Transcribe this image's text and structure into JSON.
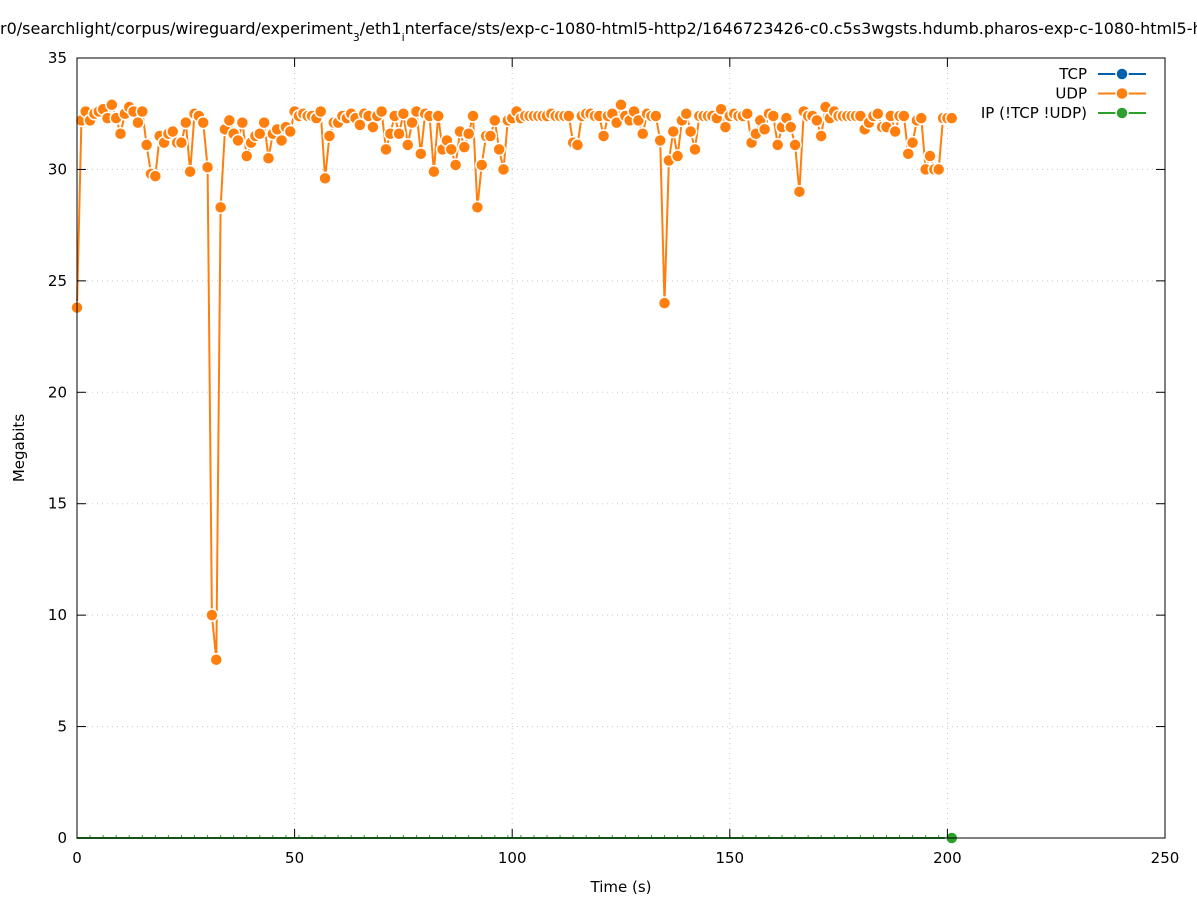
{
  "chart_data": {
    "type": "line",
    "title": "r0/searchlight/corpus/wireguard/experiment_3/eth1_interface/sts/exp-c-1080-html5-http2/1646723426-c0.c5s3wgsts.hdumb.pharos-exp-c-1080-html5-h",
    "title_parts": {
      "a": "r0/searchlight/corpus/wireguard/experiment",
      "sub1": "3",
      "b": "/eth1",
      "sub2": "i",
      "c": "nterface/sts/exp-c-1080-html5-http2/1646723426-c0.c5s3wgsts.hdumb.pharos-exp-c-1080-html5-h"
    },
    "xlabel": "Time (s)",
    "ylabel": "Megabits",
    "xlim": [
      0,
      250
    ],
    "ylim": [
      0,
      35
    ],
    "xticks": [
      0,
      50,
      100,
      150,
      200,
      250
    ],
    "yticks": [
      0,
      5,
      10,
      15,
      20,
      25,
      30,
      35
    ],
    "grid": true,
    "legend_position": "top-right",
    "series": [
      {
        "name": "TCP",
        "color": "#0060ad",
        "x": [],
        "y": []
      },
      {
        "name": "UDP",
        "color": "#ff7f0e",
        "x": [
          0,
          1,
          2,
          3,
          4,
          5,
          6,
          7,
          8,
          9,
          10,
          11,
          12,
          13,
          14,
          15,
          16,
          17,
          18,
          19,
          20,
          21,
          22,
          23,
          24,
          25,
          26,
          27,
          28,
          29,
          30,
          31,
          32,
          33,
          34,
          35,
          36,
          37,
          38,
          39,
          40,
          41,
          42,
          43,
          44,
          45,
          46,
          47,
          48,
          49,
          50,
          51,
          52,
          53,
          54,
          55,
          56,
          57,
          58,
          59,
          60,
          61,
          62,
          63,
          64,
          65,
          66,
          67,
          68,
          69,
          70,
          71,
          72,
          73,
          74,
          75,
          76,
          77,
          78,
          79,
          80,
          81,
          82,
          83,
          84,
          85,
          86,
          87,
          88,
          89,
          90,
          91,
          92,
          93,
          94,
          95,
          96,
          97,
          98,
          99,
          100,
          101,
          102,
          103,
          104,
          105,
          106,
          107,
          108,
          109,
          110,
          111,
          112,
          113,
          114,
          115,
          116,
          117,
          118,
          119,
          120,
          121,
          122,
          123,
          124,
          125,
          126,
          127,
          128,
          129,
          130,
          131,
          132,
          133,
          134,
          135,
          136,
          137,
          138,
          139,
          140,
          141,
          142,
          143,
          144,
          145,
          146,
          147,
          148,
          149,
          150,
          151,
          152,
          153,
          154,
          155,
          156,
          157,
          158,
          159,
          160,
          161,
          162,
          163,
          164,
          165,
          166,
          167,
          168,
          169,
          170,
          171,
          172,
          173,
          174,
          175,
          176,
          177,
          178,
          179,
          180,
          181,
          182,
          183,
          184,
          185,
          186,
          187,
          188,
          189,
          190,
          191,
          192,
          193,
          194,
          195,
          196,
          197,
          198,
          199,
          200,
          201
        ],
        "y": [
          23.8,
          32.2,
          32.6,
          32.2,
          32.5,
          32.6,
          32.7,
          32.3,
          32.9,
          32.3,
          31.6,
          32.5,
          32.8,
          32.6,
          32.1,
          32.6,
          31.1,
          29.8,
          29.7,
          31.5,
          31.2,
          31.6,
          31.7,
          31.2,
          31.2,
          32.1,
          29.9,
          32.5,
          32.4,
          32.1,
          30.1,
          10.0,
          8.0,
          28.3,
          31.8,
          32.2,
          31.6,
          31.3,
          32.1,
          30.6,
          31.2,
          31.5,
          31.6,
          32.1,
          30.5,
          31.6,
          31.8,
          31.3,
          31.9,
          31.7,
          32.6,
          32.4,
          32.5,
          32.4,
          32.4,
          32.3,
          32.6,
          29.6,
          31.5,
          32.1,
          32.1,
          32.4,
          32.3,
          32.5,
          32.3,
          32.0,
          32.5,
          32.4,
          31.9,
          32.4,
          32.6,
          30.9,
          31.6,
          32.4,
          31.6,
          32.5,
          31.1,
          32.1,
          32.6,
          30.7,
          32.5,
          32.4,
          29.9,
          32.4,
          30.9,
          31.3,
          30.9,
          30.2,
          31.7,
          31.0,
          31.6,
          32.4,
          28.3,
          30.2,
          31.5,
          31.5,
          32.2,
          30.9,
          30.0,
          32.2,
          32.3,
          32.6,
          32.3,
          32.4,
          32.4,
          32.4,
          32.4,
          32.4,
          32.4,
          32.5,
          32.4,
          32.4,
          32.4,
          32.4,
          31.2,
          31.1,
          32.4,
          32.5,
          32.5,
          32.4,
          32.4,
          31.5,
          32.4,
          32.5,
          32.1,
          32.9,
          32.4,
          32.2,
          32.6,
          32.2,
          31.6,
          32.5,
          32.4,
          32.4,
          31.3,
          24.0,
          30.4,
          31.7,
          30.6,
          32.2,
          32.5,
          31.7,
          30.9,
          32.4,
          32.4,
          32.4,
          32.4,
          32.3,
          32.7,
          31.9,
          32.4,
          32.5,
          32.4,
          32.4,
          32.5,
          31.2,
          31.6,
          32.2,
          31.8,
          32.5,
          32.4,
          31.1,
          31.9,
          32.3,
          31.9,
          31.1,
          29.0,
          32.6,
          32.4,
          32.4,
          32.2,
          31.5,
          32.8,
          32.3,
          32.6,
          32.4,
          32.4,
          32.4,
          32.4,
          32.4,
          32.4,
          31.8,
          32.1,
          32.4,
          32.5,
          31.9,
          31.9,
          32.4,
          31.7,
          32.4,
          32.4,
          30.7,
          31.2,
          32.2,
          32.3,
          30.0,
          30.6,
          30.0,
          30.0,
          32.3,
          32.3,
          32.3
        ]
      },
      {
        "name": "IP (!TCP  !UDP)",
        "color": "#2ca02c",
        "x": [
          0,
          3,
          6,
          9,
          12,
          15,
          18,
          21,
          24,
          27,
          30,
          33,
          36,
          39,
          42,
          45,
          48,
          51,
          54,
          57,
          60,
          63,
          66,
          69,
          72,
          75,
          78,
          81,
          84,
          87,
          90,
          93,
          96,
          99,
          102,
          105,
          108,
          111,
          114,
          117,
          120,
          123,
          126,
          129,
          132,
          135,
          138,
          141,
          144,
          147,
          150,
          153,
          156,
          159,
          162,
          165,
          168,
          171,
          174,
          177,
          180,
          183,
          186,
          189,
          192,
          195,
          198,
          201
        ],
        "y": [
          0,
          0,
          0,
          0,
          0,
          0,
          0,
          0,
          0,
          0,
          0,
          0,
          0,
          0,
          0,
          0,
          0,
          0,
          0,
          0,
          0,
          0,
          0,
          0,
          0,
          0,
          0,
          0,
          0,
          0,
          0,
          0,
          0,
          0,
          0,
          0,
          0,
          0,
          0,
          0,
          0,
          0,
          0,
          0,
          0,
          0,
          0,
          0,
          0,
          0,
          0,
          0,
          0,
          0,
          0,
          0,
          0,
          0,
          0,
          0,
          0,
          0,
          0,
          0,
          0,
          0,
          0,
          0
        ]
      }
    ]
  }
}
